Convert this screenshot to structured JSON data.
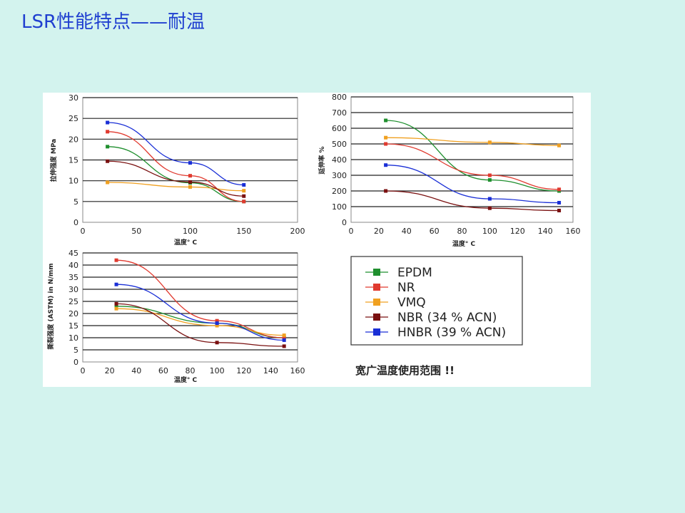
{
  "slide": {
    "title": "LSR性能特点——耐温",
    "colors": {
      "background": "#d3f3ee",
      "title": "#1f3fd0"
    }
  },
  "legend": {
    "entries": [
      {
        "name": "EPDM",
        "color": "#1f8f2e"
      },
      {
        "name": "NR",
        "color": "#e03a2f"
      },
      {
        "name": "VMQ",
        "color": "#f0a020"
      },
      {
        "name": "NBR (34 % ACN)",
        "color": "#7a1010"
      },
      {
        "name": "HNBR (39 % ACN)",
        "color": "#1a2fd6"
      }
    ]
  },
  "note": "宽广温度使用范围 !!",
  "chart_data": [
    {
      "type": "line",
      "ylabel": "拉伸强度 MPa",
      "xlabel": "温度° C",
      "xlim": [
        0,
        200
      ],
      "ylim": [
        0,
        30
      ],
      "xticks": [
        0,
        50,
        100,
        150,
        200
      ],
      "yticks": [
        0,
        5,
        10,
        15,
        20,
        25,
        30
      ],
      "grid": true,
      "series": [
        {
          "name": "EPDM",
          "x": [
            23,
            100,
            150
          ],
          "y": [
            18.2,
            9.5,
            5.0
          ]
        },
        {
          "name": "NR",
          "x": [
            23,
            100,
            150
          ],
          "y": [
            21.8,
            11.2,
            5.0
          ]
        },
        {
          "name": "VMQ",
          "x": [
            23,
            100,
            150
          ],
          "y": [
            9.6,
            8.5,
            7.6
          ]
        },
        {
          "name": "NBR (34 % ACN)",
          "x": [
            23,
            100,
            150
          ],
          "y": [
            14.7,
            9.7,
            6.3
          ]
        },
        {
          "name": "HNBR (39 % ACN)",
          "x": [
            23,
            100,
            150
          ],
          "y": [
            24.0,
            14.3,
            9.0
          ]
        }
      ]
    },
    {
      "type": "line",
      "ylabel": "延伸率 %",
      "xlabel": "温度° C",
      "xlim": [
        0,
        160
      ],
      "ylim": [
        0,
        800
      ],
      "xticks": [
        0,
        20,
        40,
        60,
        80,
        100,
        120,
        140,
        160
      ],
      "yticks": [
        0,
        100,
        200,
        300,
        400,
        500,
        600,
        700,
        800
      ],
      "grid": true,
      "series": [
        {
          "name": "EPDM",
          "x": [
            25,
            100,
            150
          ],
          "y": [
            650,
            270,
            200
          ]
        },
        {
          "name": "NR",
          "x": [
            25,
            100,
            150
          ],
          "y": [
            500,
            300,
            210
          ]
        },
        {
          "name": "VMQ",
          "x": [
            25,
            100,
            150
          ],
          "y": [
            540,
            510,
            490
          ]
        },
        {
          "name": "NBR (34 % ACN)",
          "x": [
            25,
            100,
            150
          ],
          "y": [
            200,
            90,
            75
          ]
        },
        {
          "name": "HNBR (39 % ACN)",
          "x": [
            25,
            100,
            150
          ],
          "y": [
            365,
            150,
            125
          ]
        }
      ]
    },
    {
      "type": "line",
      "ylabel": "撕裂强度 (ASTM) in N/mm",
      "xlabel": "温度° C",
      "xlim": [
        0,
        160
      ],
      "ylim": [
        0,
        45
      ],
      "xticks": [
        0,
        20,
        40,
        60,
        80,
        100,
        120,
        140,
        160
      ],
      "yticks": [
        0,
        5,
        10,
        15,
        20,
        25,
        30,
        35,
        40,
        45
      ],
      "grid": true,
      "series": [
        {
          "name": "EPDM",
          "x": [
            25,
            100,
            150
          ],
          "y": [
            23,
            16,
            10
          ]
        },
        {
          "name": "NR",
          "x": [
            25,
            100,
            150
          ],
          "y": [
            42,
            17,
            10
          ]
        },
        {
          "name": "VMQ",
          "x": [
            25,
            100,
            150
          ],
          "y": [
            22,
            15,
            11
          ]
        },
        {
          "name": "NBR (34 % ACN)",
          "x": [
            25,
            100,
            150
          ],
          "y": [
            24,
            8,
            6.5
          ]
        },
        {
          "name": "HNBR (39 % ACN)",
          "x": [
            25,
            100,
            150
          ],
          "y": [
            32,
            16,
            9
          ]
        }
      ]
    }
  ]
}
